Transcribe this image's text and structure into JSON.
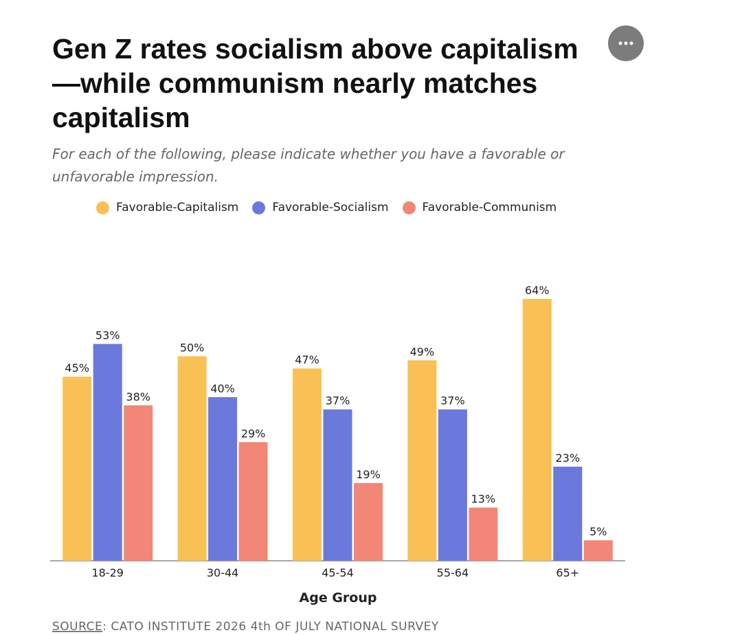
{
  "chart_data": {
    "type": "bar",
    "title": "Gen Z rates socialism above capitalism—while communism nearly matches capitalism",
    "subtitle": "For each of the following, please indicate whether you have a favorable or unfavorable impression.",
    "x_label": "Age Group",
    "source_label": "SOURCE",
    "source": ": CATO INSTITUTE 2026 4th OF JULY NATIONAL SURVEY",
    "categories": [
      "18-29",
      "30-44",
      "45-54",
      "55-64",
      "65+"
    ],
    "series": [
      {
        "name": "Favorable-Capitalism",
        "color": "#f9c155",
        "values": [
          45,
          50,
          47,
          49,
          64
        ],
        "value_labels": [
          "45%",
          "50%",
          "47%",
          "49%",
          "64%"
        ]
      },
      {
        "name": "Favorable-Socialism",
        "color": "#6b78dc",
        "values": [
          53,
          40,
          37,
          37,
          23
        ],
        "value_labels": [
          "53%",
          "40%",
          "37%",
          "37%",
          "23%"
        ]
      },
      {
        "name": "Favorable-Communism",
        "color": "#f28677",
        "values": [
          38,
          29,
          19,
          13,
          5
        ],
        "value_labels": [
          "38%",
          "29%",
          "19%",
          "13%",
          "5%"
        ]
      }
    ]
  }
}
